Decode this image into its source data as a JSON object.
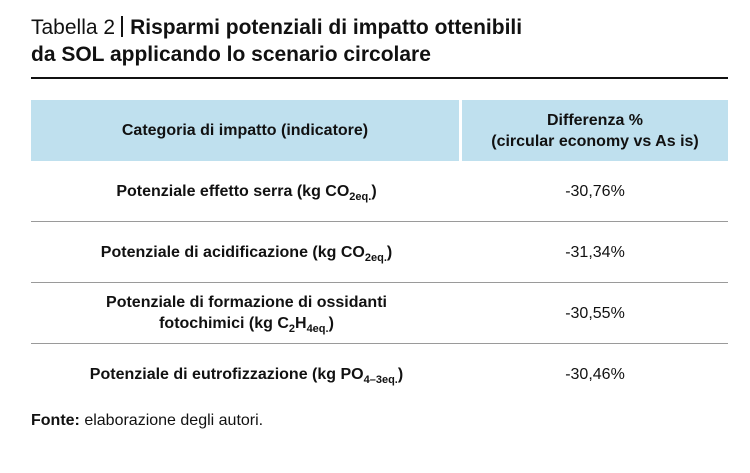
{
  "title": {
    "label": "Tabella 2",
    "heading_line1": "Risparmi potenziali di impatto ottenibili",
    "heading_line2": "da SOL applicando lo scenario circolare"
  },
  "table": {
    "headers": {
      "col1": "Categoria di impatto (indicatore)",
      "col2_line1": "Differenza %",
      "col2_line2": "(circular economy vs As is)"
    },
    "rows": [
      {
        "text": "Potenziale effetto serra (kg CO",
        "sub": "2eq.",
        "after": ")",
        "value": "-30,76%"
      },
      {
        "text": "Potenziale di acidificazione (kg CO",
        "sub": "2eq.",
        "after": ")",
        "value": "-31,34%"
      },
      {
        "line1": "Potenziale di formazione di ossidanti",
        "text": "fotochimici (kg C",
        "sub_a": "2",
        "mid": "H",
        "sub": "4eq.",
        "after": ")",
        "value": "-30,55%"
      },
      {
        "text": "Potenziale di eutrofizzazione (kg PO",
        "sub": "4–3eq.",
        "after": ")",
        "value": "-30,46%"
      }
    ]
  },
  "source": {
    "label": "Fonte:",
    "text": " elaborazione degli autori."
  }
}
